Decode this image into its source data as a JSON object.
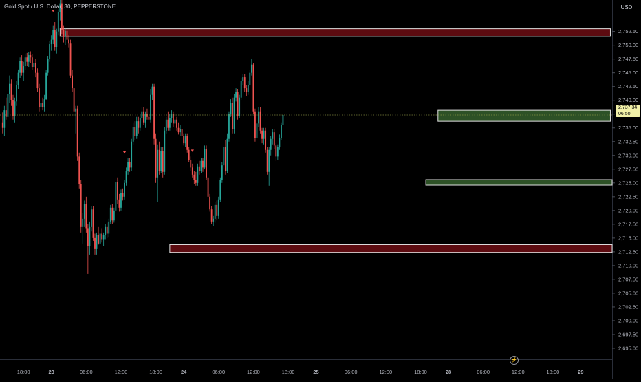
{
  "header": {
    "symbol_title": "Gold Spot / U.S. Dollar, 30, PEPPERSTONE",
    "currency": "USD"
  },
  "price_tag": {
    "price": "2,737.34",
    "countdown": "06:50"
  },
  "colors": {
    "background": "#000000",
    "up": "#26a69a",
    "down": "#ef5350",
    "resistance_zone_fill": "#5c0b10",
    "support_zone_fill": "#2d5126",
    "zone_border": "#e0e0e0",
    "axis_text": "#b2b5be",
    "marker": "#ef5350",
    "last_price_line": "#9aa44a"
  },
  "icons": {
    "flash": "flash-icon"
  },
  "chart_data": {
    "type": "candlestick",
    "ylim": [
      2693.0,
      2758.2
    ],
    "xlim": [
      -1.5,
      350
    ],
    "yticks": [
      "2,695.00",
      "2,697.50",
      "2,700.00",
      "2,702.50",
      "2,705.00",
      "2,707.50",
      "2,710.00",
      "2,712.50",
      "2,715.00",
      "2,717.50",
      "2,720.00",
      "2,722.50",
      "2,725.00",
      "2,727.50",
      "2,730.00",
      "2,732.50",
      "2,735.00",
      "2,737.50",
      "2,740.00",
      "2,742.50",
      "2,745.00",
      "2,747.50",
      "2,750.00",
      "2,752.50"
    ],
    "ytick_values": [
      2695,
      2697.5,
      2700,
      2702.5,
      2705,
      2707.5,
      2710,
      2712.5,
      2715,
      2717.5,
      2720,
      2722.5,
      2725,
      2727.5,
      2730,
      2732.5,
      2735,
      2737.5,
      2740,
      2742.5,
      2745,
      2747.5,
      2750,
      2752.5
    ],
    "xticks": [
      {
        "label": "18:00",
        "x": 12
      },
      {
        "label": "23",
        "x": 28
      },
      {
        "label": "06:00",
        "x": 48
      },
      {
        "label": "12:00",
        "x": 68
      },
      {
        "label": "18:00",
        "x": 88
      },
      {
        "label": "24",
        "x": 104
      },
      {
        "label": "06:00",
        "x": 124
      },
      {
        "label": "12:00",
        "x": 144
      },
      {
        "label": "18:00",
        "x": 164
      },
      {
        "label": "25",
        "x": 180
      },
      {
        "label": "06:00",
        "x": 200
      },
      {
        "label": "12:00",
        "x": 220
      },
      {
        "label": "18:00",
        "x": 240
      },
      {
        "label": "28",
        "x": 256
      },
      {
        "label": "06:00",
        "x": 276
      },
      {
        "label": "12:00",
        "x": 296
      },
      {
        "label": "18:00",
        "x": 316
      },
      {
        "label": "29",
        "x": 332
      }
    ],
    "bold_xticks": [
      "23",
      "24",
      "25",
      "28",
      "29"
    ],
    "last_price": 2737.34,
    "candles": [
      [
        2736.0,
        2737.8,
        2734.0,
        2735.0
      ],
      [
        2735.0,
        2739.0,
        2733.5,
        2738.2
      ],
      [
        2738.2,
        2740.5,
        2736.5,
        2737.0
      ],
      [
        2737.0,
        2741.8,
        2736.2,
        2741.2
      ],
      [
        2741.2,
        2744.5,
        2739.5,
        2743.0
      ],
      [
        2743.0,
        2743.8,
        2739.0,
        2740.0
      ],
      [
        2740.0,
        2741.0,
        2736.5,
        2737.2
      ],
      [
        2737.2,
        2740.5,
        2736.0,
        2739.8
      ],
      [
        2739.8,
        2743.5,
        2739.0,
        2742.8
      ],
      [
        2742.8,
        2745.6,
        2742.0,
        2745.0
      ],
      [
        2745.0,
        2747.8,
        2744.0,
        2747.2
      ],
      [
        2747.2,
        2748.2,
        2744.5,
        2745.0
      ],
      [
        2745.0,
        2747.0,
        2743.5,
        2746.2
      ],
      [
        2746.2,
        2748.5,
        2745.5,
        2747.8
      ],
      [
        2747.8,
        2748.6,
        2746.2,
        2747.0
      ],
      [
        2747.0,
        2748.8,
        2746.0,
        2748.2
      ],
      [
        2748.2,
        2748.9,
        2746.8,
        2747.8
      ],
      [
        2747.8,
        2748.4,
        2745.5,
        2746.0
      ],
      [
        2746.0,
        2747.2,
        2744.5,
        2746.8
      ],
      [
        2746.8,
        2747.5,
        2744.2,
        2745.0
      ],
      [
        2745.0,
        2745.8,
        2741.5,
        2742.2
      ],
      [
        2742.2,
        2743.0,
        2738.0,
        2738.8
      ],
      [
        2738.8,
        2740.0,
        2737.8,
        2739.5
      ],
      [
        2739.5,
        2740.5,
        2738.2,
        2738.8
      ],
      [
        2738.8,
        2741.0,
        2738.0,
        2740.2
      ],
      [
        2740.2,
        2745.5,
        2740.0,
        2745.0
      ],
      [
        2745.0,
        2748.0,
        2744.5,
        2747.5
      ],
      [
        2747.5,
        2750.8,
        2747.0,
        2750.2
      ],
      [
        2750.2,
        2751.8,
        2749.0,
        2751.0
      ],
      [
        2751.0,
        2753.5,
        2750.2,
        2752.8
      ],
      [
        2752.8,
        2754.2,
        2749.0,
        2749.6
      ],
      [
        2749.6,
        2753.0,
        2748.5,
        2752.5
      ],
      [
        2752.5,
        2756.5,
        2751.8,
        2756.0
      ],
      [
        2756.0,
        2758.2,
        2754.5,
        2757.5
      ],
      [
        2757.5,
        2758.2,
        2752.0,
        2752.8
      ],
      [
        2752.8,
        2753.5,
        2750.5,
        2751.5
      ],
      [
        2751.5,
        2753.0,
        2750.0,
        2752.6
      ],
      [
        2752.6,
        2753.2,
        2750.2,
        2751.0
      ],
      [
        2751.0,
        2751.8,
        2749.5,
        2750.3
      ],
      [
        2750.3,
        2751.0,
        2744.0,
        2744.5
      ],
      [
        2744.5,
        2745.5,
        2741.5,
        2742.2
      ],
      [
        2742.2,
        2742.8,
        2737.5,
        2738.0
      ],
      [
        2738.0,
        2739.0,
        2734.0,
        2738.5
      ],
      [
        2738.5,
        2739.0,
        2729.0,
        2729.8
      ],
      [
        2729.8,
        2730.5,
        2724.0,
        2724.8
      ],
      [
        2724.8,
        2725.5,
        2716.0,
        2717.0
      ],
      [
        2717.0,
        2719.5,
        2714.0,
        2718.5
      ],
      [
        2718.5,
        2721.8,
        2717.0,
        2721.2
      ],
      [
        2721.2,
        2722.5,
        2716.0,
        2716.8
      ],
      [
        2716.8,
        2717.5,
        2708.5,
        2713.5
      ],
      [
        2713.5,
        2718.0,
        2712.0,
        2717.0
      ],
      [
        2717.0,
        2720.8,
        2716.2,
        2720.2
      ],
      [
        2720.2,
        2720.8,
        2714.5,
        2715.0
      ],
      [
        2715.0,
        2715.8,
        2712.0,
        2713.0
      ],
      [
        2713.0,
        2716.0,
        2712.0,
        2715.5
      ],
      [
        2715.5,
        2717.0,
        2713.8,
        2714.0
      ],
      [
        2714.0,
        2716.5,
        2713.0,
        2715.8
      ],
      [
        2715.8,
        2716.8,
        2714.2,
        2714.8
      ],
      [
        2714.8,
        2716.0,
        2713.5,
        2715.5
      ],
      [
        2715.5,
        2717.5,
        2714.8,
        2717.0
      ],
      [
        2717.0,
        2717.8,
        2715.0,
        2715.8
      ],
      [
        2715.8,
        2718.5,
        2715.2,
        2718.0
      ],
      [
        2718.0,
        2721.0,
        2717.5,
        2720.5
      ],
      [
        2720.5,
        2721.2,
        2717.5,
        2718.2
      ],
      [
        2718.2,
        2720.5,
        2717.8,
        2720.0
      ],
      [
        2720.0,
        2725.8,
        2719.5,
        2725.2
      ],
      [
        2725.2,
        2726.0,
        2721.2,
        2722.0
      ],
      [
        2722.0,
        2723.0,
        2719.8,
        2720.5
      ],
      [
        2720.5,
        2723.8,
        2720.0,
        2723.2
      ],
      [
        2723.2,
        2724.0,
        2721.8,
        2722.5
      ],
      [
        2722.5,
        2725.5,
        2722.0,
        2725.0
      ],
      [
        2725.0,
        2727.8,
        2724.5,
        2727.2
      ],
      [
        2727.2,
        2729.5,
        2726.5,
        2728.8
      ],
      [
        2728.8,
        2729.5,
        2727.0,
        2727.8
      ],
      [
        2727.8,
        2733.0,
        2727.2,
        2732.5
      ],
      [
        2732.5,
        2736.0,
        2732.0,
        2735.2
      ],
      [
        2735.2,
        2736.2,
        2732.8,
        2733.5
      ],
      [
        2733.5,
        2737.0,
        2733.0,
        2736.2
      ],
      [
        2736.2,
        2737.0,
        2734.0,
        2735.0
      ],
      [
        2735.0,
        2737.5,
        2734.5,
        2736.8
      ],
      [
        2736.8,
        2738.8,
        2736.0,
        2738.0
      ],
      [
        2738.0,
        2738.8,
        2735.5,
        2736.0
      ],
      [
        2736.0,
        2738.0,
        2735.0,
        2737.5
      ],
      [
        2737.5,
        2738.5,
        2736.5,
        2737.0
      ],
      [
        2737.0,
        2738.2,
        2736.0,
        2736.5
      ],
      [
        2736.5,
        2742.0,
        2736.0,
        2741.0
      ],
      [
        2741.0,
        2743.0,
        2740.0,
        2742.5
      ],
      [
        2742.5,
        2743.0,
        2732.0,
        2733.0
      ],
      [
        2733.0,
        2734.0,
        2725.0,
        2726.0
      ],
      [
        2726.0,
        2732.0,
        2721.5,
        2731.0
      ],
      [
        2731.0,
        2732.5,
        2726.5,
        2727.2
      ],
      [
        2727.2,
        2731.5,
        2726.8,
        2730.8
      ],
      [
        2730.8,
        2731.5,
        2726.0,
        2727.0
      ],
      [
        2727.0,
        2735.2,
        2726.5,
        2734.5
      ],
      [
        2734.5,
        2737.0,
        2734.0,
        2736.5
      ],
      [
        2736.5,
        2738.0,
        2734.5,
        2735.0
      ],
      [
        2735.0,
        2737.5,
        2734.5,
        2736.8
      ],
      [
        2736.8,
        2738.2,
        2736.0,
        2737.5
      ],
      [
        2737.5,
        2738.0,
        2735.2,
        2735.8
      ],
      [
        2735.8,
        2737.2,
        2735.0,
        2736.5
      ],
      [
        2736.5,
        2737.0,
        2734.5,
        2735.0
      ],
      [
        2735.0,
        2736.0,
        2733.8,
        2734.2
      ],
      [
        2734.2,
        2735.5,
        2733.5,
        2734.8
      ],
      [
        2734.8,
        2735.2,
        2733.0,
        2733.5
      ],
      [
        2733.5,
        2734.0,
        2731.8,
        2732.2
      ],
      [
        2732.2,
        2734.0,
        2731.5,
        2733.5
      ],
      [
        2733.5,
        2734.0,
        2730.5,
        2731.0
      ],
      [
        2731.0,
        2731.5,
        2728.8,
        2729.2
      ],
      [
        2729.2,
        2729.8,
        2727.2,
        2727.8
      ],
      [
        2727.8,
        2728.5,
        2726.0,
        2726.5
      ],
      [
        2726.5,
        2727.2,
        2724.8,
        2725.5
      ],
      [
        2725.5,
        2727.0,
        2724.5,
        2725.0
      ],
      [
        2725.0,
        2728.5,
        2724.5,
        2728.0
      ],
      [
        2728.0,
        2729.0,
        2726.5,
        2727.2
      ],
      [
        2727.2,
        2729.5,
        2726.8,
        2729.0
      ],
      [
        2729.0,
        2729.5,
        2727.0,
        2727.8
      ],
      [
        2727.8,
        2731.8,
        2727.5,
        2731.2
      ],
      [
        2731.2,
        2731.8,
        2725.5,
        2726.0
      ],
      [
        2726.0,
        2726.5,
        2722.0,
        2722.5
      ],
      [
        2722.5,
        2723.0,
        2719.8,
        2720.2
      ],
      [
        2720.2,
        2720.8,
        2717.5,
        2718.0
      ],
      [
        2718.0,
        2719.0,
        2717.2,
        2718.5
      ],
      [
        2718.5,
        2721.5,
        2717.8,
        2721.0
      ],
      [
        2721.0,
        2721.8,
        2718.2,
        2719.0
      ],
      [
        2719.0,
        2722.5,
        2718.5,
        2722.0
      ],
      [
        2722.0,
        2726.0,
        2721.5,
        2725.5
      ],
      [
        2725.5,
        2728.8,
        2725.0,
        2728.2
      ],
      [
        2728.2,
        2732.0,
        2727.5,
        2731.5
      ],
      [
        2731.5,
        2732.8,
        2726.5,
        2727.2
      ],
      [
        2727.2,
        2734.0,
        2726.8,
        2733.0
      ],
      [
        2733.0,
        2738.0,
        2732.5,
        2737.5
      ],
      [
        2737.5,
        2740.2,
        2737.0,
        2739.5
      ],
      [
        2739.5,
        2740.5,
        2734.0,
        2734.8
      ],
      [
        2734.8,
        2741.2,
        2734.0,
        2740.5
      ],
      [
        2740.5,
        2742.2,
        2739.8,
        2741.5
      ],
      [
        2741.5,
        2742.0,
        2736.5,
        2737.2
      ],
      [
        2737.2,
        2741.0,
        2736.8,
        2740.5
      ],
      [
        2740.5,
        2744.0,
        2740.0,
        2743.5
      ],
      [
        2743.5,
        2744.8,
        2742.8,
        2744.2
      ],
      [
        2744.2,
        2744.8,
        2741.5,
        2742.2
      ],
      [
        2742.2,
        2742.8,
        2740.8,
        2741.5
      ],
      [
        2741.5,
        2743.5,
        2741.0,
        2742.8
      ],
      [
        2742.8,
        2745.5,
        2742.5,
        2745.0
      ],
      [
        2745.0,
        2747.5,
        2744.5,
        2746.5
      ],
      [
        2746.5,
        2746.8,
        2737.5,
        2738.0
      ],
      [
        2738.0,
        2738.5,
        2732.5,
        2733.2
      ],
      [
        2733.2,
        2736.5,
        2731.5,
        2735.8
      ],
      [
        2735.8,
        2738.8,
        2735.2,
        2738.0
      ],
      [
        2738.0,
        2738.8,
        2734.0,
        2734.5
      ],
      [
        2734.5,
        2735.0,
        2732.2,
        2733.0
      ],
      [
        2733.0,
        2735.0,
        2732.0,
        2734.5
      ],
      [
        2734.5,
        2735.0,
        2730.5,
        2731.0
      ],
      [
        2731.0,
        2731.5,
        2726.5,
        2727.0
      ],
      [
        2727.0,
        2731.5,
        2724.5,
        2731.0
      ],
      [
        2731.0,
        2733.5,
        2730.0,
        2733.0
      ],
      [
        2733.0,
        2734.8,
        2732.0,
        2734.2
      ],
      [
        2734.2,
        2734.8,
        2731.2,
        2731.8
      ],
      [
        2731.8,
        2732.2,
        2729.0,
        2729.8
      ],
      [
        2729.8,
        2732.0,
        2729.2,
        2731.5
      ],
      [
        2731.5,
        2733.8,
        2731.0,
        2733.2
      ],
      [
        2733.2,
        2736.0,
        2732.8,
        2735.5
      ],
      [
        2735.5,
        2738.0,
        2735.0,
        2737.34
      ]
    ],
    "zones": [
      {
        "kind": "resistance",
        "y_top": 2753.0,
        "y_bottom": 2751.6,
        "x_start": 33,
        "x_end": 349
      },
      {
        "kind": "support",
        "y_top": 2738.2,
        "y_bottom": 2736.2,
        "x_start": 250,
        "x_end": 349
      },
      {
        "kind": "support",
        "y_top": 2725.6,
        "y_bottom": 2724.6,
        "x_start": 243,
        "x_end": 350
      },
      {
        "kind": "resistance",
        "y_top": 2713.8,
        "y_bottom": 2712.4,
        "x_start": 96,
        "x_end": 353
      }
    ],
    "markers": [
      {
        "candle": 29,
        "price": 2756.2
      },
      {
        "candle": 70,
        "price": 2730.5
      },
      {
        "candle": 109,
        "price": 2730.8
      }
    ]
  }
}
